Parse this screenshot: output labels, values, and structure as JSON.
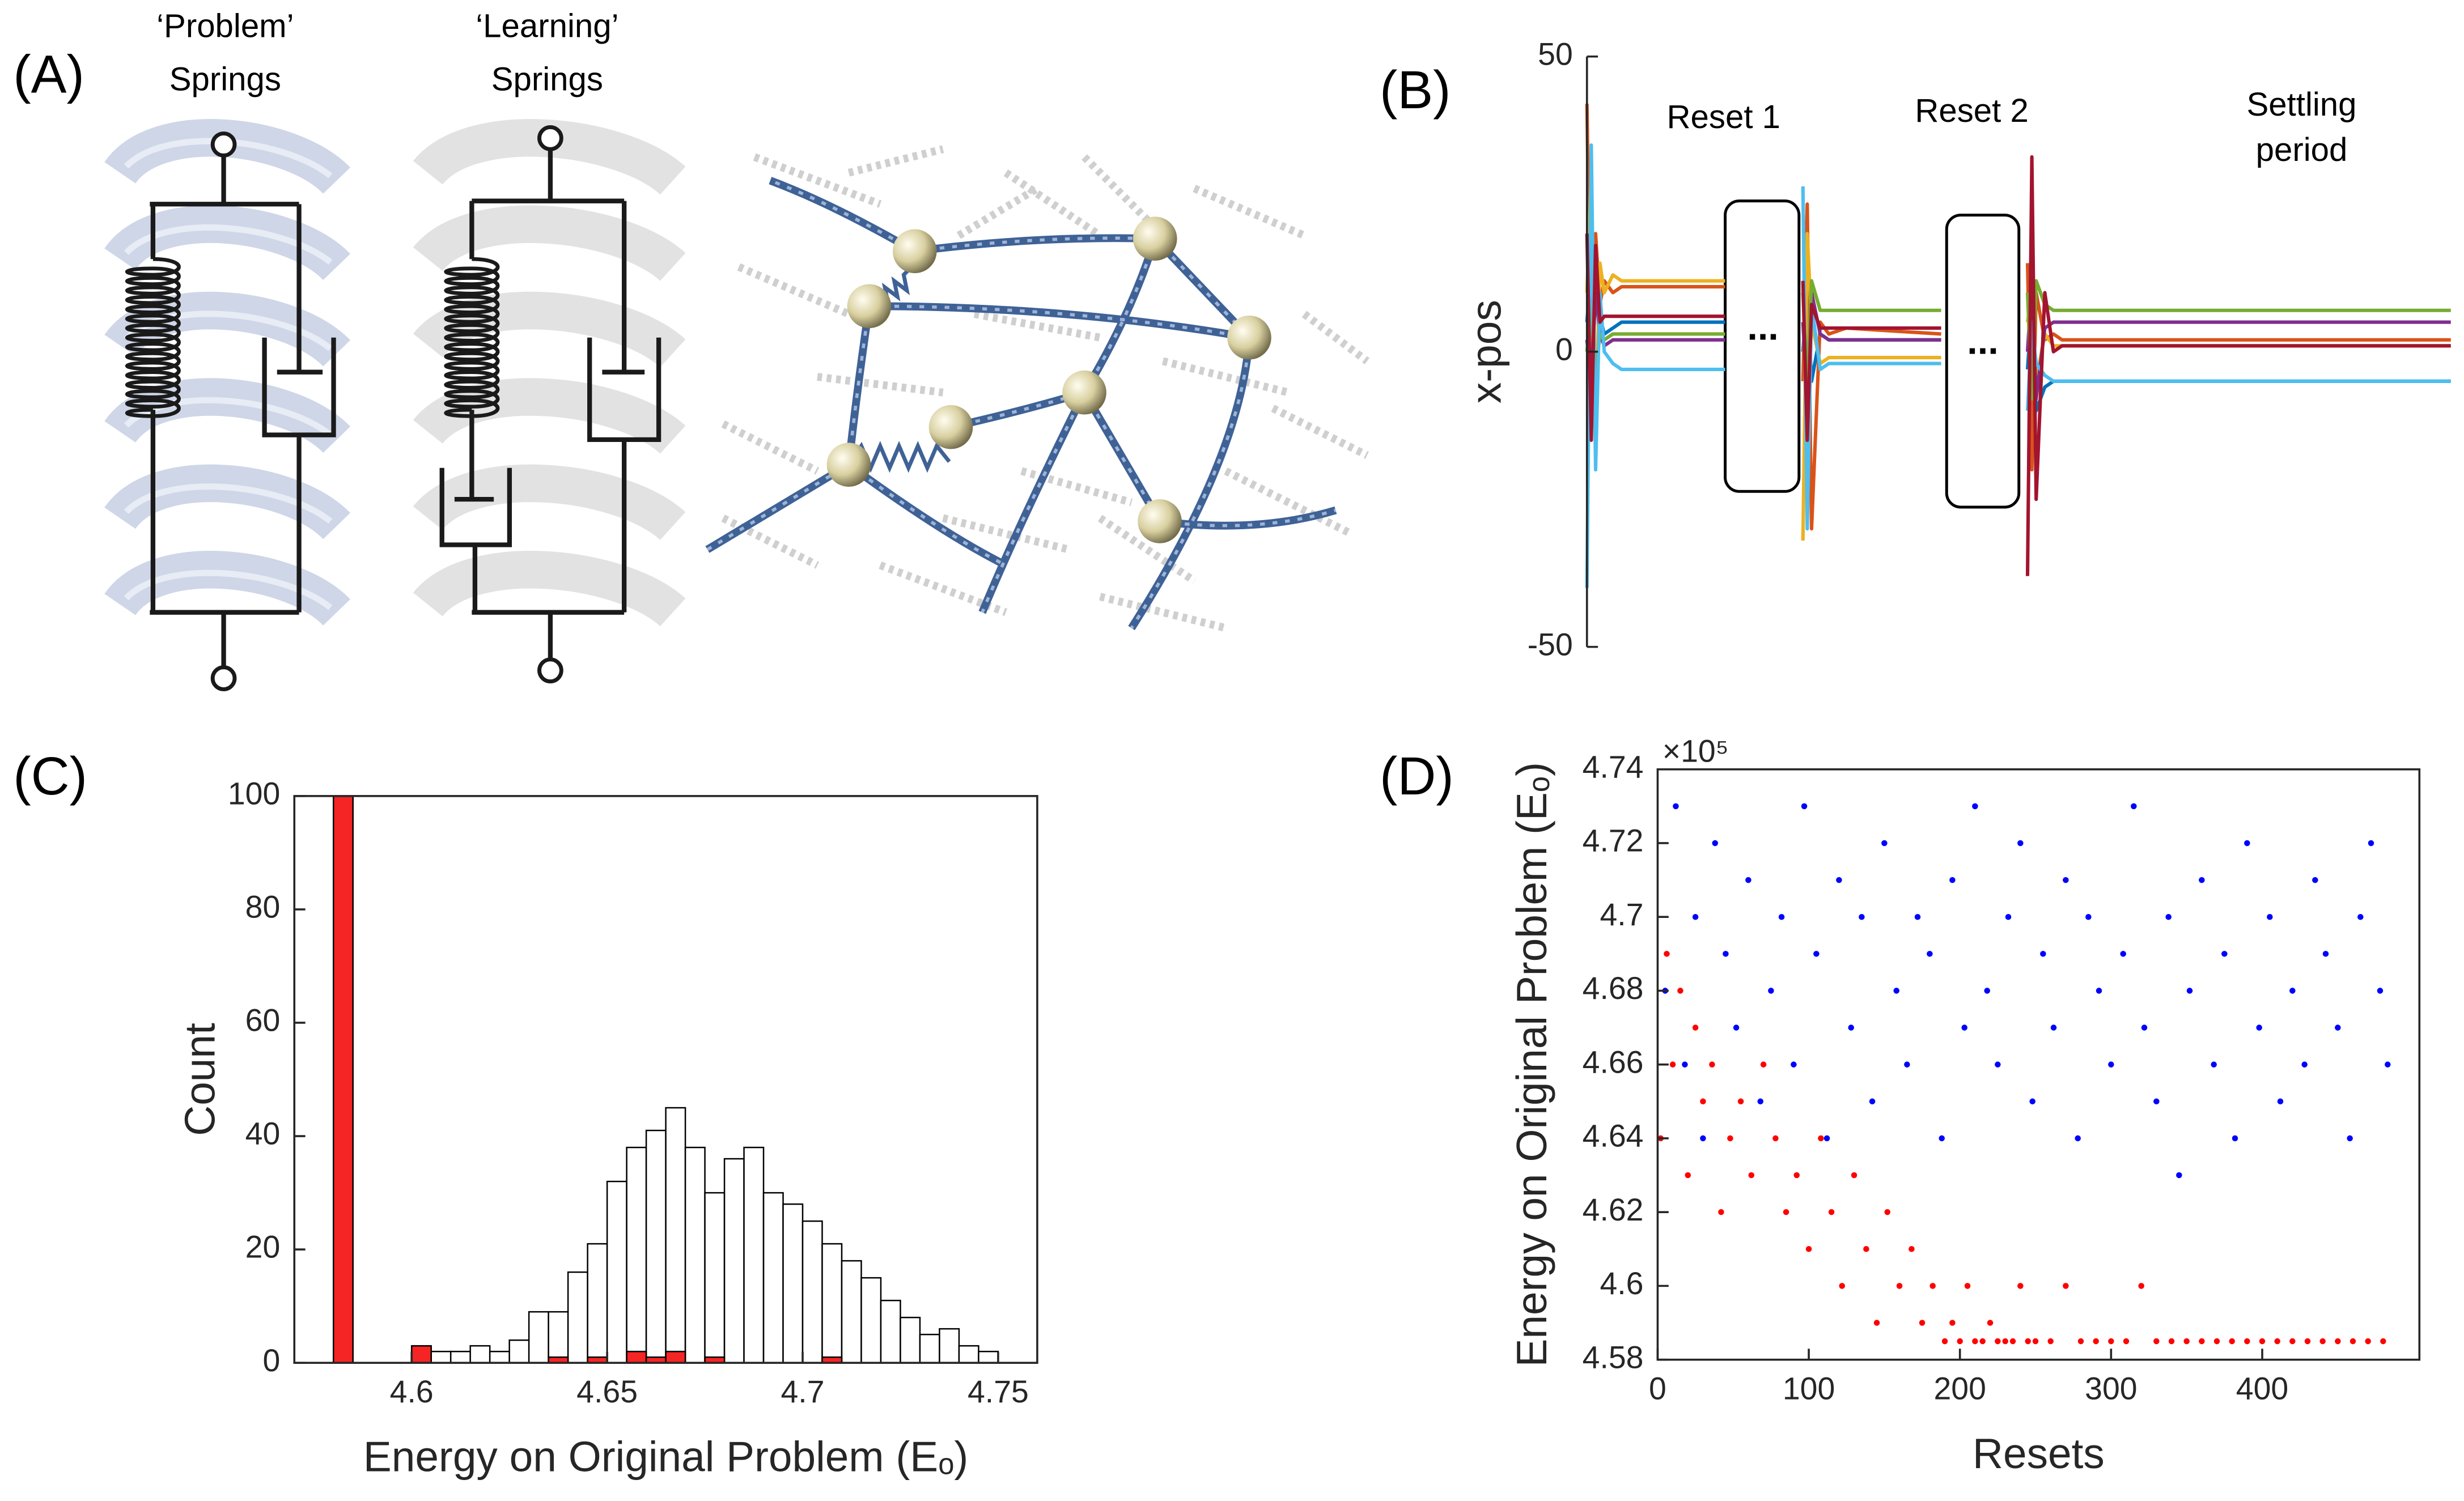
{
  "panel_labels": [
    "(A)",
    "(B)",
    "(C)",
    "(D)"
  ],
  "diagram": {
    "problem_springs": [
      "‘Problem’",
      "Springs"
    ],
    "learning_springs": [
      "‘Learning’",
      "Springs"
    ]
  },
  "chart_data": [
    {
      "type": "line",
      "ylabel": "x-pos",
      "annotations": [
        "Reset 1",
        "Reset 2",
        [
          "Settling",
          "period"
        ],
        "...",
        "..."
      ],
      "xlim": [
        0,
        100
      ],
      "ylim": [
        -50,
        50
      ],
      "yticks": [
        -50,
        0,
        50
      ],
      "x": [
        0,
        0.5,
        1,
        1.5,
        2,
        3,
        4,
        6,
        16,
        20,
        25,
        25.5,
        26,
        27,
        28,
        30,
        41,
        45,
        51,
        51.5,
        52,
        53,
        54,
        55,
        57,
        60,
        100
      ],
      "series": [
        {
          "color": "#0072BD",
          "values": [
            5,
            15,
            -8,
            6,
            3,
            4,
            5,
            5,
            5,
            null,
            0,
            10,
            -5,
            3,
            2,
            2,
            2,
            null,
            -3,
            8,
            -10,
            -6,
            -5,
            -5,
            -5,
            -5,
            -5
          ]
        },
        {
          "color": "#D95319",
          "values": [
            42,
            -10,
            20,
            8,
            12,
            10,
            11,
            11,
            11,
            null,
            -5,
            25,
            -30,
            5,
            3,
            4,
            3,
            null,
            15,
            -20,
            10,
            2,
            3,
            2,
            2,
            2,
            2
          ]
        },
        {
          "color": "#EDB120",
          "values": [
            10,
            30,
            -12,
            15,
            10,
            13,
            12,
            12,
            12,
            null,
            -32,
            20,
            5,
            -2,
            -1,
            -1,
            -1,
            null,
            5,
            10,
            -5,
            3,
            1,
            1,
            1,
            1,
            1
          ]
        },
        {
          "color": "#7E2F8E",
          "values": [
            2,
            -5,
            10,
            3,
            1,
            2,
            2,
            2,
            2,
            null,
            5,
            -8,
            10,
            3,
            2,
            2,
            2,
            null,
            0,
            12,
            -8,
            4,
            5,
            5,
            5,
            5,
            5
          ]
        },
        {
          "color": "#77AC30",
          "values": [
            0,
            8,
            -4,
            3,
            2,
            3,
            3,
            3,
            3,
            null,
            10,
            -5,
            12,
            7,
            7,
            7,
            7,
            null,
            10,
            -8,
            12,
            8,
            7,
            7,
            7,
            7,
            7
          ]
        },
        {
          "color": "#4DBEEE",
          "values": [
            -40,
            35,
            -20,
            10,
            0,
            -2,
            -3,
            -3,
            -3,
            null,
            28,
            -30,
            8,
            -3,
            -2,
            -2,
            -2,
            null,
            -10,
            5,
            -2,
            -4,
            -5,
            -5,
            -5,
            -5,
            -5
          ]
        },
        {
          "color": "#A2142F",
          "values": [
            20,
            -15,
            18,
            5,
            6,
            6,
            6,
            6,
            6,
            null,
            12,
            -15,
            8,
            4,
            4,
            4,
            4,
            null,
            -38,
            33,
            -25,
            10,
            0,
            1,
            1,
            1,
            1
          ]
        }
      ]
    },
    {
      "type": "histogram",
      "xlabel": "Energy on Original Problem (Eₒ)",
      "ylabel": "Count",
      "xlim": [
        4.57,
        4.76
      ],
      "xticks": [
        4.6,
        4.65,
        4.7,
        4.75
      ],
      "ylim": [
        0,
        100
      ],
      "yticks": [
        0,
        20,
        40,
        60,
        80,
        100
      ],
      "bins": [
        4.575,
        4.58,
        4.585,
        4.59,
        4.595,
        4.6,
        4.605,
        4.61,
        4.615,
        4.62,
        4.625,
        4.63,
        4.635,
        4.64,
        4.645,
        4.65,
        4.655,
        4.66,
        4.665,
        4.67,
        4.675,
        4.68,
        4.685,
        4.69,
        4.695,
        4.7,
        4.705,
        4.71,
        4.715,
        4.72,
        4.725,
        4.73,
        4.735,
        4.74,
        4.745,
        4.75
      ],
      "series": [
        {
          "color": "#ffffff",
          "values": [
            0,
            0,
            0,
            0,
            0,
            0,
            2,
            2,
            3,
            2,
            4,
            9,
            9,
            16,
            21,
            32,
            38,
            41,
            45,
            38,
            30,
            36,
            38,
            30,
            28,
            25,
            21,
            18,
            15,
            11,
            8,
            5,
            6,
            3,
            2
          ]
        },
        {
          "color": "#f52525",
          "values": [
            0,
            100,
            0,
            0,
            0,
            3,
            0,
            0,
            0,
            0,
            0,
            0,
            1,
            0,
            1,
            0,
            2,
            1,
            2,
            0,
            1,
            0,
            0,
            0,
            0,
            0,
            1,
            0,
            0,
            0,
            0,
            0,
            0,
            0,
            0
          ]
        }
      ]
    },
    {
      "type": "scatter",
      "xlabel": "Resets",
      "ylabel": "Energy on Original Problem (Eₒ)",
      "y_multiplier": "×10⁵",
      "xlim": [
        0,
        504
      ],
      "xticks": [
        0,
        100,
        200,
        300,
        400
      ],
      "ylim": [
        4.58,
        4.74
      ],
      "yticks": [
        4.58,
        4.6,
        4.62,
        4.64,
        4.66,
        4.68,
        4.7,
        4.72,
        4.74
      ],
      "series": [
        {
          "color": "#0000ff",
          "x": [
            5,
            12,
            18,
            25,
            30,
            38,
            45,
            52,
            60,
            68,
            75,
            82,
            90,
            97,
            105,
            112,
            120,
            128,
            135,
            142,
            150,
            158,
            165,
            172,
            180,
            188,
            195,
            203,
            210,
            218,
            225,
            232,
            240,
            248,
            255,
            262,
            270,
            278,
            285,
            292,
            300,
            308,
            315,
            322,
            330,
            338,
            345,
            352,
            360,
            368,
            375,
            382,
            390,
            398,
            405,
            412,
            420,
            428,
            435,
            442,
            450,
            458,
            465,
            472,
            478,
            483
          ],
          "values": [
            4.68,
            4.73,
            4.66,
            4.7,
            4.64,
            4.72,
            4.69,
            4.67,
            4.71,
            4.65,
            4.68,
            4.7,
            4.66,
            4.73,
            4.69,
            4.64,
            4.71,
            4.67,
            4.7,
            4.65,
            4.72,
            4.68,
            4.66,
            4.7,
            4.69,
            4.64,
            4.71,
            4.67,
            4.73,
            4.68,
            4.66,
            4.7,
            4.72,
            4.65,
            4.69,
            4.67,
            4.71,
            4.64,
            4.7,
            4.68,
            4.66,
            4.69,
            4.73,
            4.67,
            4.65,
            4.7,
            4.63,
            4.68,
            4.71,
            4.66,
            4.69,
            4.64,
            4.72,
            4.67,
            4.7,
            4.65,
            4.68,
            4.66,
            4.71,
            4.69,
            4.67,
            4.64,
            4.7,
            4.72,
            4.68,
            4.66
          ]
        },
        {
          "color": "#ff0000",
          "x": [
            2,
            6,
            10,
            15,
            20,
            25,
            30,
            36,
            42,
            48,
            55,
            62,
            70,
            78,
            85,
            92,
            100,
            108,
            115,
            122,
            130,
            138,
            145,
            152,
            160,
            168,
            175,
            182,
            190,
            195,
            200,
            205,
            210,
            215,
            220,
            225,
            230,
            235,
            240,
            245,
            250,
            260,
            270,
            280,
            290,
            300,
            310,
            320,
            330,
            340,
            350,
            360,
            370,
            380,
            390,
            400,
            410,
            420,
            430,
            440,
            450,
            460,
            470,
            480
          ],
          "values": [
            4.64,
            4.69,
            4.66,
            4.68,
            4.63,
            4.67,
            4.65,
            4.66,
            4.62,
            4.64,
            4.65,
            4.63,
            4.66,
            4.64,
            4.62,
            4.63,
            4.61,
            4.64,
            4.62,
            4.6,
            4.63,
            4.61,
            4.59,
            4.62,
            4.6,
            4.61,
            4.59,
            4.6,
            4.585,
            4.59,
            4.585,
            4.6,
            4.585,
            4.585,
            4.59,
            4.585,
            4.585,
            4.585,
            4.6,
            4.585,
            4.585,
            4.585,
            4.6,
            4.585,
            4.585,
            4.585,
            4.585,
            4.6,
            4.585,
            4.585,
            4.585,
            4.585,
            4.585,
            4.585,
            4.585,
            4.585,
            4.585,
            4.585,
            4.585,
            4.585,
            4.585,
            4.585,
            4.585,
            4.585
          ]
        }
      ]
    }
  ]
}
